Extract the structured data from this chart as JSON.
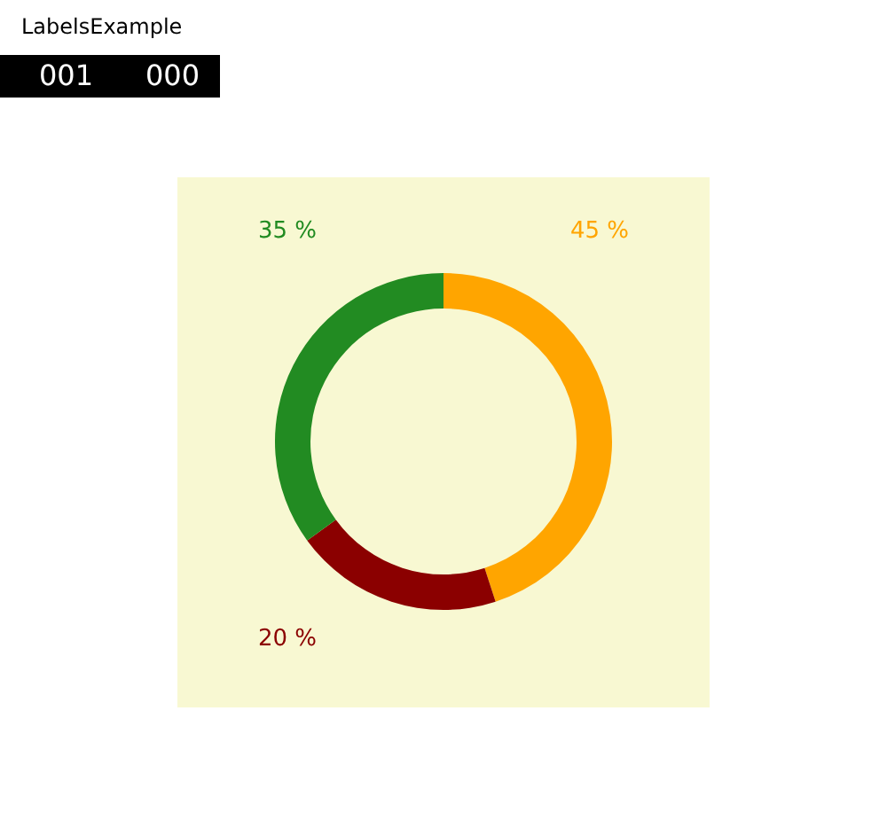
{
  "chart_data": {
    "type": "donut",
    "title": "LabelsExample",
    "annotations": [
      "001",
      "000"
    ],
    "categories": [
      null,
      null,
      null
    ],
    "values": [
      45,
      20,
      35
    ],
    "colors": [
      "#ffa500",
      "#8b0000",
      "#228b22"
    ],
    "value_labels": [
      "45 %",
      "20 %",
      "35 %"
    ]
  }
}
